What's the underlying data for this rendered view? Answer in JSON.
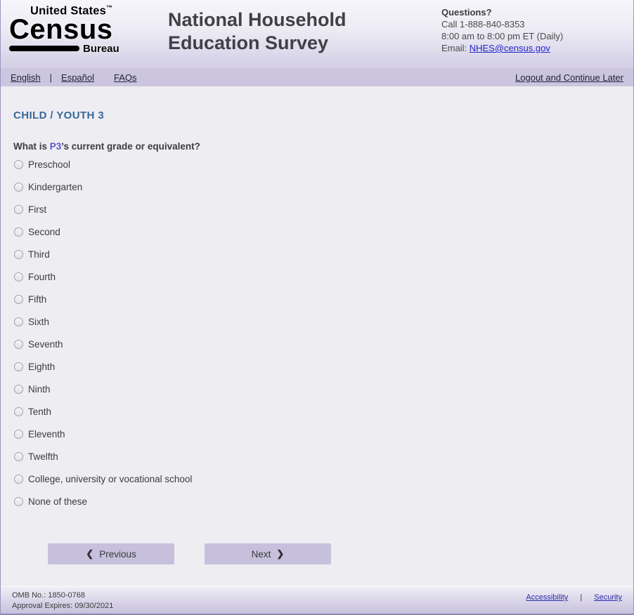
{
  "header": {
    "logo": {
      "top": "United States",
      "tm": "™",
      "main": "Census",
      "sub": "Bureau"
    },
    "title": "National Household Education Survey",
    "questions": {
      "heading": "Questions?",
      "phone": "Call 1-888-840-8353",
      "hours": "8:00 am to 8:00 pm ET (Daily)",
      "email_label": "Email: ",
      "email_link": "NHES@census.gov"
    }
  },
  "nav": {
    "english": "English",
    "separator": "|",
    "espanol": "Español",
    "faqs": "FAQs",
    "logout": "Logout and Continue Later"
  },
  "main": {
    "section_title": "CHILD / YOUTH 3",
    "question": {
      "prefix": "What is ",
      "person": "P3",
      "suffix": "’s current grade or equivalent?"
    },
    "options": [
      "Preschool",
      "Kindergarten",
      "First",
      "Second",
      "Third",
      "Fourth",
      "Fifth",
      "Sixth",
      "Seventh",
      "Eighth",
      "Ninth",
      "Tenth",
      "Eleventh",
      "Twelfth",
      "College, university or vocational school",
      "None of these"
    ]
  },
  "buttons": {
    "prev_icon": "❮",
    "previous": "Previous",
    "next": "Next",
    "next_icon": "❯"
  },
  "footer": {
    "omb": "OMB No.: 1850-0768",
    "approval": "Approval Expires: 09/30/2021",
    "accessibility": "Accessibility",
    "separator": "|",
    "security": "Security"
  },
  "colors": {
    "section_title_blue": "#36689A",
    "person_purple": "#5C55CD",
    "nav_background": "#CBC5DF",
    "button_background": "#C6C0DD",
    "link_blue": "#2323CD",
    "footer_link_blue": "#2B2BAA",
    "page_background": "#EEEDF2"
  }
}
